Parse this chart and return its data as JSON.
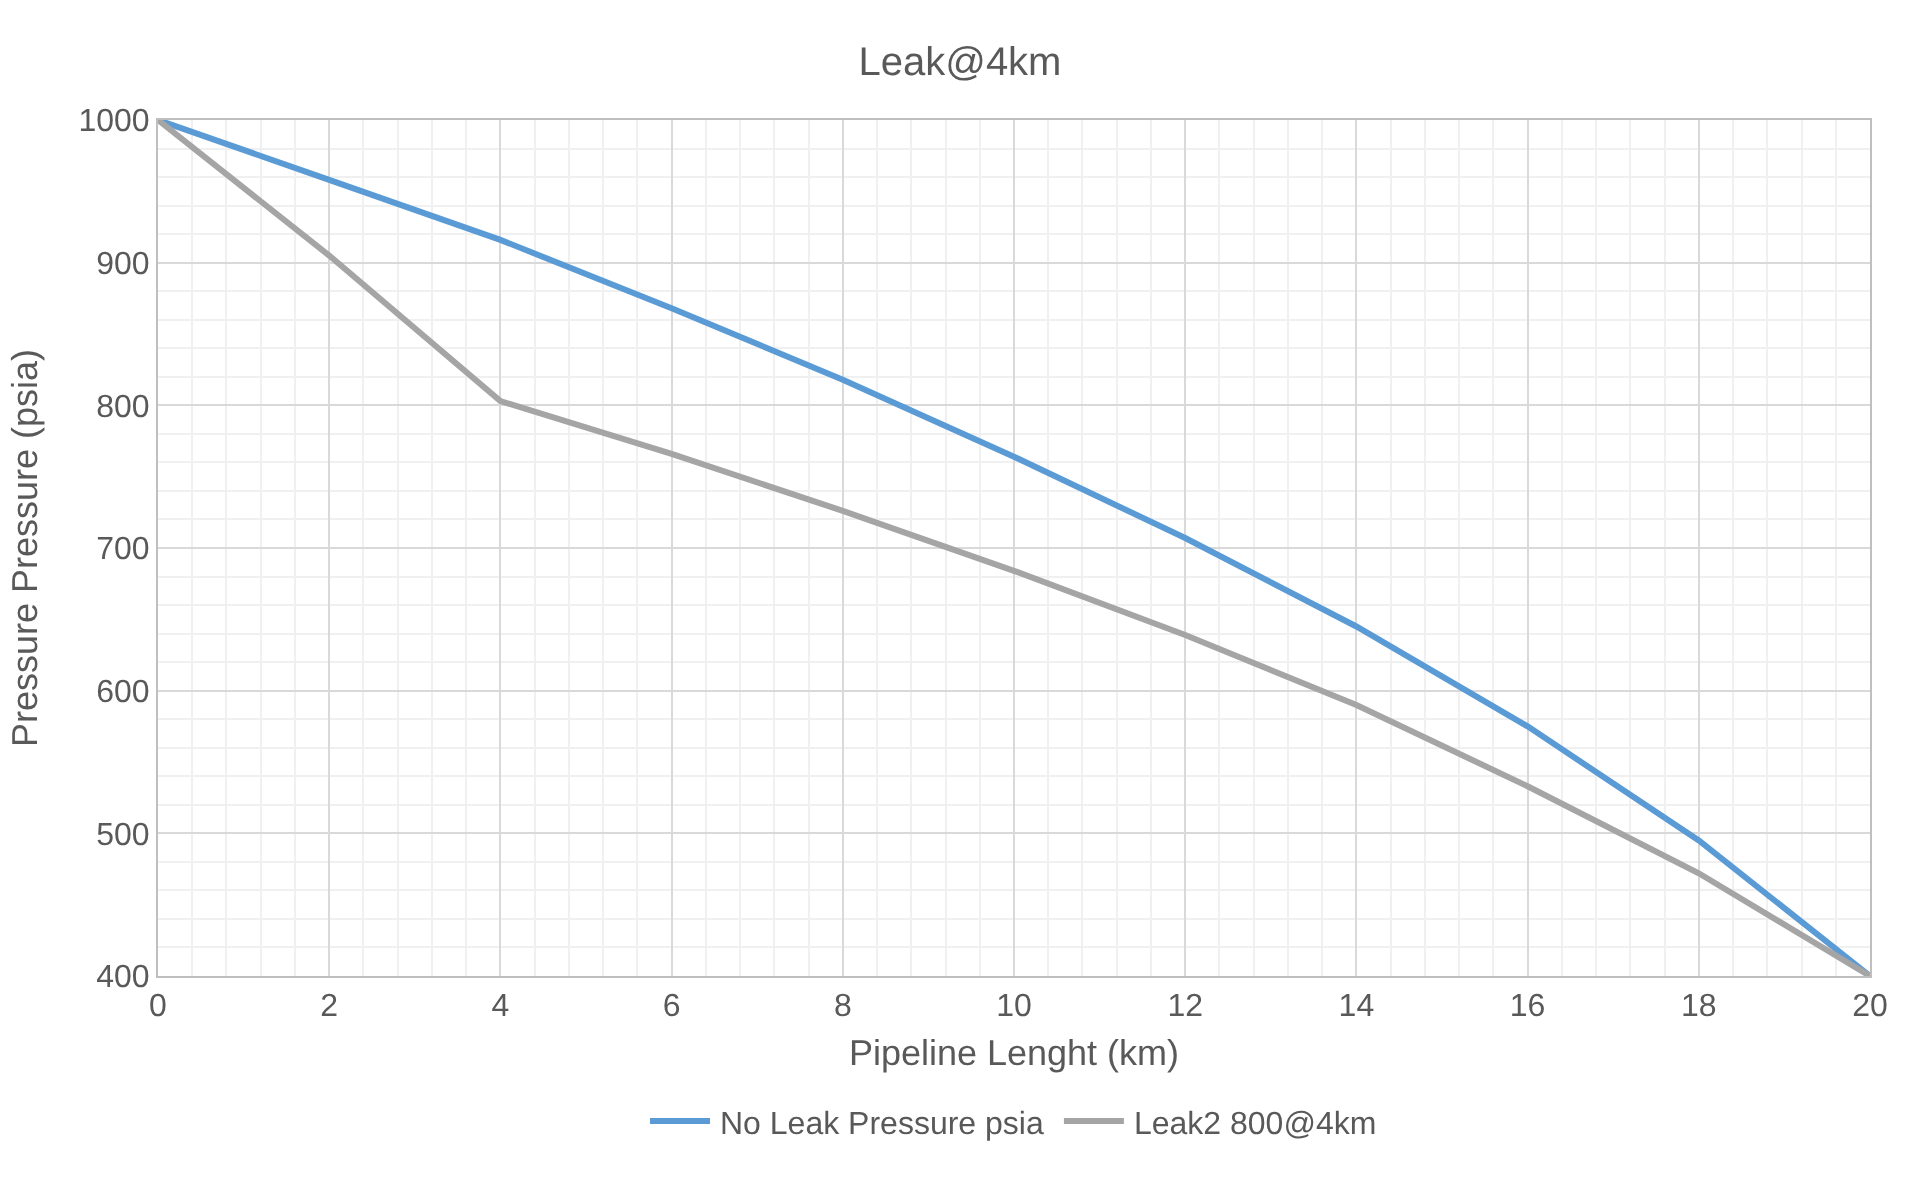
{
  "chart_data": {
    "type": "line",
    "title": "Leak@4km",
    "xlabel": "Pipeline Lenght (km)",
    "ylabel": "Pressure Pressure (psia)",
    "x": [
      0,
      2,
      4,
      6,
      8,
      10,
      12,
      14,
      16,
      18,
      20
    ],
    "series": [
      {
        "name": "No Leak Pressure psia",
        "color": "#5b9bd5",
        "values": [
          1000,
          958,
          916,
          868,
          818,
          764,
          707,
          645,
          575,
          495,
          400
        ]
      },
      {
        "name": "Leak2 800@4km",
        "color": "#a5a5a5",
        "values": [
          1000,
          905,
          803,
          766,
          726,
          684,
          639,
          590,
          533,
          472,
          400
        ]
      }
    ],
    "xlim": [
      0,
      20
    ],
    "xticks": [
      0,
      2,
      4,
      6,
      8,
      10,
      12,
      14,
      16,
      18,
      20
    ],
    "ylim": [
      400,
      1000
    ],
    "yticks": [
      400,
      500,
      600,
      700,
      800,
      900,
      1000
    ],
    "grid": true,
    "legend": "bottom",
    "marker": "none",
    "line_style": "solid"
  }
}
